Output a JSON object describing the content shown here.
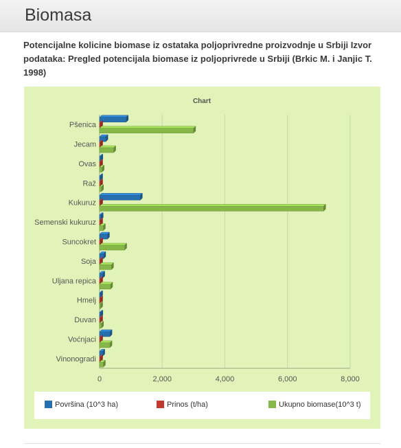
{
  "page": {
    "title": "Biomasa",
    "subtitle": "Potencijalne kolicine biomase iz ostataka poljoprivredne proizvodnje u Srbiji Izvor podataka: Pregled potencijala biomase iz poljoprivrede u Srbiji (Brkic M. i Janjic T. 1998)"
  },
  "colors": {
    "series": [
      "#2770b0",
      "#c03a2e",
      "#86b749"
    ],
    "panel": "#e1f3b8"
  },
  "chart_data": {
    "type": "bar",
    "orientation": "horizontal",
    "title": "Chart",
    "categories": [
      "Pšenica",
      "Jecam",
      "Ovas",
      "Raž",
      "Kukuruz",
      "Semenski kukuruz",
      "Suncokret",
      "Soja",
      "Uljana repica",
      "Hmelj",
      "Duvan",
      "Voćnjaci",
      "Vinonogradi"
    ],
    "series": [
      {
        "name": "Površina (10^3 ha)",
        "values": [
          850,
          200,
          40,
          25,
          1300,
          50,
          250,
          130,
          100,
          10,
          40,
          330,
          100
        ]
      },
      {
        "name": "Prinos (t/ha)",
        "values": [
          4,
          4,
          2,
          2,
          5,
          2,
          2,
          2,
          2,
          1,
          2,
          5,
          5
        ]
      },
      {
        "name": "Ukupno biomase(10^3 t)",
        "values": [
          3000,
          450,
          80,
          60,
          7150,
          120,
          800,
          380,
          350,
          25,
          60,
          330,
          120
        ]
      }
    ],
    "xlim": [
      0,
      8000
    ],
    "xticks": [
      0,
      2000,
      4000,
      6000,
      8000
    ],
    "xtick_labels": [
      "0",
      "2,000",
      "4,000",
      "6,000",
      "8,000"
    ],
    "grid": true,
    "legend": "bottom"
  }
}
